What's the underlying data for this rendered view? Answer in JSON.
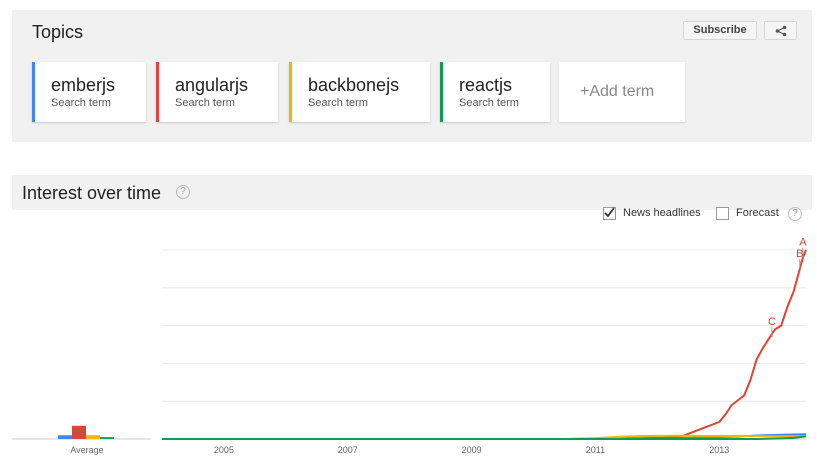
{
  "topics": {
    "title": "Topics",
    "subscribe_label": "Subscribe",
    "share_icon": "share-icon",
    "terms": [
      {
        "name": "emberjs",
        "sub": "Search term",
        "color": "#4285f4"
      },
      {
        "name": "angularjs",
        "sub": "Search term",
        "color": "#db4437"
      },
      {
        "name": "backbonejs",
        "sub": "Search term",
        "color": "#f4b400"
      },
      {
        "name": "reactjs",
        "sub": "Search term",
        "color": "#0f9d58"
      }
    ],
    "add_term": "+Add term"
  },
  "interest": {
    "title": "Interest over time",
    "help_icon": "help-icon",
    "news_headlines_label": "News headlines",
    "news_headlines_checked": true,
    "forecast_label": "Forecast",
    "forecast_checked": false
  },
  "chart_data": {
    "type": "line",
    "title": "",
    "xlabel": "",
    "ylabel": "",
    "ylim": [
      0,
      100
    ],
    "xlim": [
      2004.0,
      2014.4
    ],
    "grid": true,
    "x_tick_labels": [
      "2005",
      "2007",
      "2009",
      "2011",
      "2013"
    ],
    "x_ticks": [
      2005,
      2007,
      2009,
      2011,
      2013
    ],
    "average_label": "Average",
    "series": [
      {
        "name": "emberjs",
        "color": "#4285f4",
        "average": 2,
        "points": [
          [
            2004.0,
            0
          ],
          [
            2011.6,
            0
          ],
          [
            2012.0,
            0.3
          ],
          [
            2012.5,
            0.6
          ],
          [
            2012.9,
            1
          ],
          [
            2013.3,
            1.3
          ],
          [
            2013.7,
            2
          ],
          [
            2014.0,
            2.3
          ],
          [
            2014.4,
            2.5
          ]
        ]
      },
      {
        "name": "angularjs",
        "color": "#db4437",
        "average": 7,
        "points": [
          [
            2004.0,
            0
          ],
          [
            2011.3,
            0
          ],
          [
            2011.7,
            0.4
          ],
          [
            2012.1,
            0.7
          ],
          [
            2012.4,
            1.5
          ],
          [
            2012.6,
            4
          ],
          [
            2012.8,
            6.5
          ],
          [
            2013.0,
            9
          ],
          [
            2013.1,
            13
          ],
          [
            2013.2,
            18
          ],
          [
            2013.4,
            23
          ],
          [
            2013.5,
            31
          ],
          [
            2013.6,
            42
          ],
          [
            2013.7,
            48
          ],
          [
            2013.8,
            53
          ],
          [
            2013.9,
            58
          ],
          [
            2014.0,
            60
          ],
          [
            2014.1,
            70
          ],
          [
            2014.2,
            78
          ],
          [
            2014.3,
            90
          ],
          [
            2014.35,
            96
          ],
          [
            2014.4,
            100
          ]
        ]
      },
      {
        "name": "backbonejs",
        "color": "#f4b400",
        "average": 2,
        "points": [
          [
            2004.0,
            0
          ],
          [
            2010.5,
            0
          ],
          [
            2011.0,
            0.5
          ],
          [
            2011.4,
            1.2
          ],
          [
            2011.8,
            1.6
          ],
          [
            2012.3,
            1.7
          ],
          [
            2012.8,
            1.6
          ],
          [
            2013.3,
            1.6
          ],
          [
            2013.8,
            1.5
          ],
          [
            2014.4,
            1.5
          ]
        ]
      },
      {
        "name": "reactjs",
        "color": "#0f9d58",
        "average": 1,
        "points": [
          [
            2004.0,
            0
          ],
          [
            2013.3,
            0
          ],
          [
            2013.6,
            0
          ],
          [
            2014.0,
            0.3
          ],
          [
            2014.2,
            0.6
          ],
          [
            2014.4,
            1.4
          ]
        ]
      }
    ],
    "annotations": [
      {
        "label": "A",
        "x": 2014.35,
        "y": 96
      },
      {
        "label": "B",
        "x": 2014.3,
        "y": 90
      },
      {
        "label": "C",
        "x": 2013.85,
        "y": 54
      }
    ]
  }
}
